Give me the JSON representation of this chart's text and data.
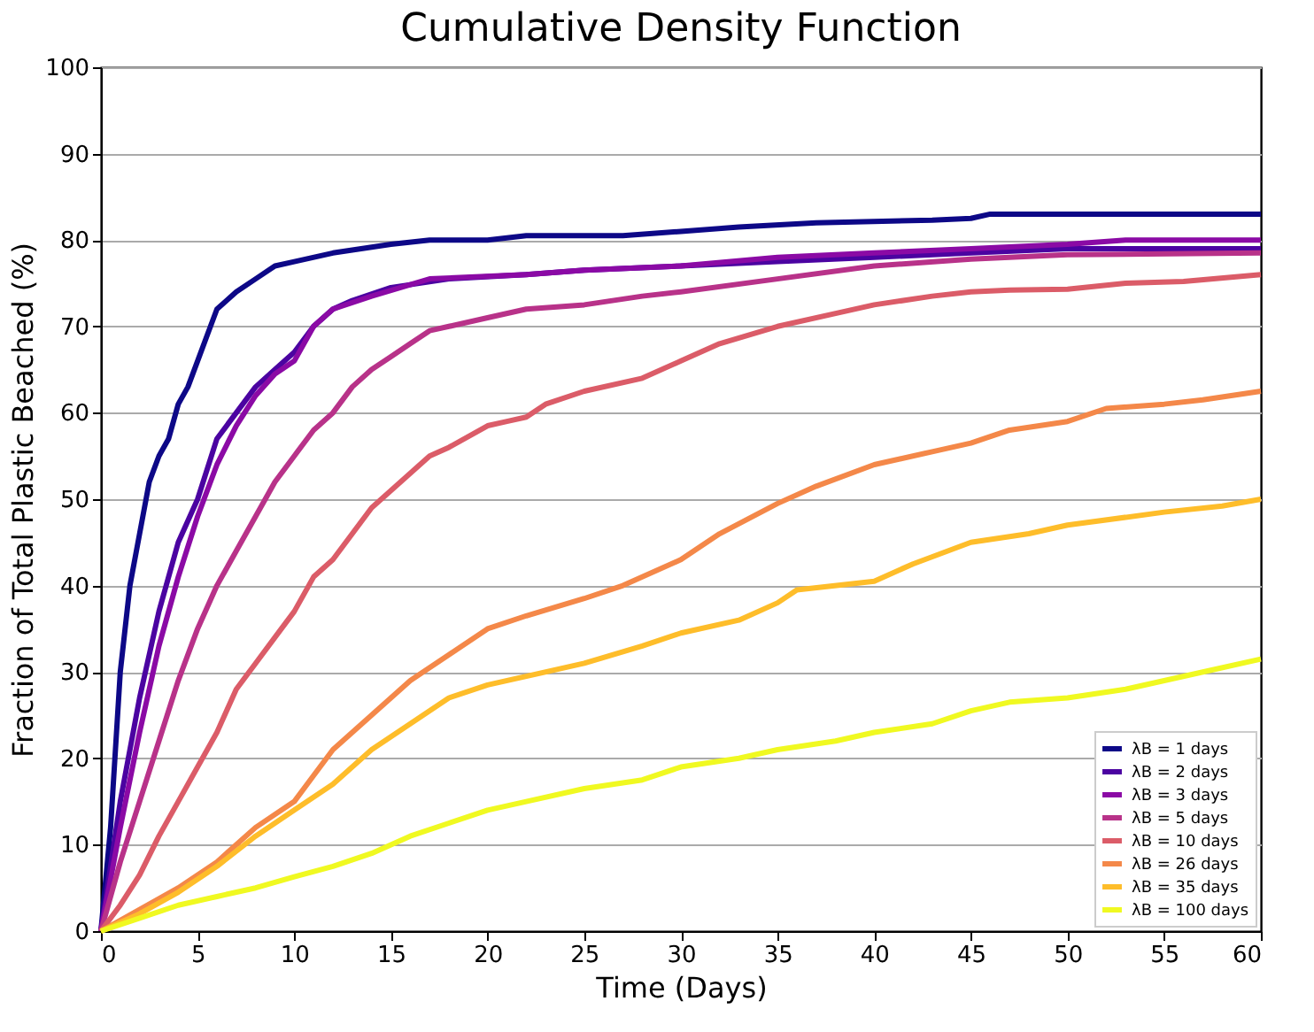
{
  "chart_data": {
    "type": "line",
    "title": "Cumulative Density Function",
    "xlabel": "Time (Days)",
    "ylabel": "Fraction of Total Plastic Beached (%)",
    "xlim": [
      0,
      60
    ],
    "ylim": [
      0,
      100
    ],
    "xticks": [
      0,
      5,
      10,
      15,
      20,
      25,
      30,
      35,
      40,
      45,
      50,
      55,
      60
    ],
    "yticks": [
      0,
      10,
      20,
      30,
      40,
      50,
      60,
      70,
      80,
      90,
      100
    ],
    "grid": "y",
    "legend": "bottom right",
    "line_style": "solid",
    "marker": "none",
    "series": [
      {
        "name": "λB = 1 days",
        "color": "#0d0887",
        "x": [
          0,
          0.5,
          1,
          1.5,
          2,
          2.5,
          3,
          3.5,
          4,
          4.5,
          5,
          5.5,
          6,
          7,
          8,
          9,
          10,
          12,
          15,
          17,
          20,
          22,
          27,
          30,
          33,
          37,
          43,
          45,
          46,
          60
        ],
        "values": [
          0,
          12,
          30,
          40,
          46,
          52,
          55,
          57,
          61,
          63,
          66,
          69,
          72,
          74,
          75.5,
          77,
          77.5,
          78.5,
          79.5,
          80,
          80,
          80.5,
          80.5,
          81,
          81.5,
          82,
          82.3,
          82.5,
          83,
          83
        ]
      },
      {
        "name": "λB = 2 days",
        "color": "#4b03a1",
        "x": [
          0,
          1,
          2,
          3,
          4,
          5,
          6,
          7,
          8,
          9,
          10,
          11,
          12,
          13,
          15,
          18,
          22,
          25,
          30,
          35,
          40,
          45,
          50,
          60
        ],
        "values": [
          0,
          15,
          27,
          37,
          45,
          50,
          57,
          60,
          63,
          65,
          67,
          70,
          72,
          73,
          74.5,
          75.5,
          76,
          76.5,
          77,
          77.5,
          78,
          78.5,
          79,
          79
        ]
      },
      {
        "name": "λB = 3 days",
        "color": "#8b0aa5",
        "x": [
          0,
          1,
          2,
          3,
          4,
          5,
          6,
          7,
          8,
          9,
          10,
          11,
          12,
          14,
          17,
          22,
          25,
          30,
          35,
          40,
          45,
          50,
          53,
          60
        ],
        "values": [
          0,
          12,
          23,
          33,
          41,
          48,
          54,
          58.5,
          62,
          64.5,
          66,
          70,
          72,
          73.5,
          75.5,
          76,
          76.5,
          77,
          78,
          78.5,
          79,
          79.5,
          80,
          80
        ]
      },
      {
        "name": "λB = 5 days",
        "color": "#b83289",
        "x": [
          0,
          1,
          2,
          3,
          4,
          5,
          6,
          7,
          8,
          9,
          10,
          11,
          12,
          13,
          14,
          15,
          16,
          17,
          18,
          20,
          22,
          25,
          28,
          30,
          35,
          40,
          45,
          50,
          60
        ],
        "values": [
          0,
          8,
          15,
          22,
          29,
          35,
          40,
          44,
          48,
          52,
          55,
          58,
          60,
          63,
          65,
          66.5,
          68,
          69.5,
          70,
          71,
          72,
          72.5,
          73.5,
          74,
          75.5,
          77,
          77.8,
          78.3,
          78.5
        ]
      },
      {
        "name": "λB = 10 days",
        "color": "#db5c68",
        "x": [
          0,
          1,
          2,
          3,
          4,
          5,
          6,
          7,
          8,
          9,
          10,
          11,
          12,
          13,
          14,
          15,
          16,
          17,
          18,
          20,
          21,
          22,
          23,
          25,
          28,
          30,
          32,
          35,
          38,
          40,
          43,
          45,
          47,
          50,
          53,
          56,
          60
        ],
        "values": [
          0,
          3,
          6.5,
          11,
          15,
          19,
          23,
          28,
          31,
          34,
          37,
          41,
          43,
          46,
          49,
          51,
          53,
          55,
          56,
          58.5,
          59,
          59.5,
          61,
          62.5,
          64,
          66,
          68,
          70,
          71.5,
          72.5,
          73.5,
          74,
          74.2,
          74.3,
          75,
          75.2,
          76
        ]
      },
      {
        "name": "λB = 26 days",
        "color": "#f48849",
        "x": [
          0,
          2,
          4,
          6,
          8,
          10,
          11,
          12,
          14,
          16,
          18,
          20,
          22,
          25,
          27,
          30,
          32,
          35,
          37,
          40,
          43,
          45,
          47,
          50,
          52,
          55,
          57,
          60
        ],
        "values": [
          0,
          2.5,
          5,
          8,
          12,
          15,
          18,
          21,
          25,
          29,
          32,
          35,
          36.5,
          38.5,
          40,
          43,
          46,
          49.5,
          51.5,
          54,
          55.5,
          56.5,
          58,
          59,
          60.5,
          61,
          61.5,
          62.5
        ]
      },
      {
        "name": "λB = 35 days",
        "color": "#febd2a",
        "x": [
          0,
          2,
          4,
          6,
          8,
          10,
          12,
          14,
          16,
          18,
          20,
          22,
          25,
          28,
          30,
          33,
          35,
          36,
          40,
          42,
          45,
          48,
          50,
          55,
          58,
          60
        ],
        "values": [
          0,
          2,
          4.5,
          7.5,
          11,
          14,
          17,
          21,
          24,
          27,
          28.5,
          29.5,
          31,
          33,
          34.5,
          36,
          38,
          39.5,
          40.5,
          42.5,
          45,
          46,
          47,
          48.5,
          49.2,
          50
        ]
      },
      {
        "name": "λB = 100 days",
        "color": "#f0f921",
        "x": [
          0,
          2,
          4,
          6,
          8,
          10,
          12,
          14,
          16,
          18,
          20,
          22,
          25,
          28,
          30,
          33,
          35,
          38,
          40,
          43,
          45,
          47,
          50,
          53,
          55,
          57,
          60
        ],
        "values": [
          0,
          1.5,
          3,
          4,
          5,
          6.3,
          7.5,
          9,
          11,
          12.5,
          14,
          15,
          16.5,
          17.5,
          19,
          20,
          21,
          22,
          23,
          24,
          25.5,
          26.5,
          27,
          28,
          29,
          30,
          31.5
        ]
      }
    ]
  }
}
